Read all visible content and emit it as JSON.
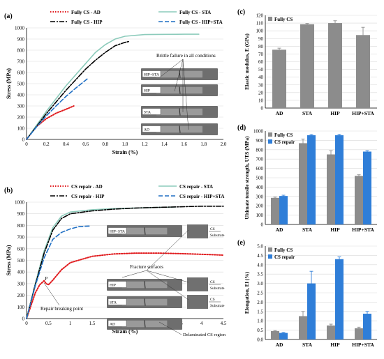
{
  "colors": {
    "ad": "#e0191c",
    "sta": "#8ccbbb",
    "hip": "#000000",
    "hipsta": "#1f6fc4",
    "bar_fully": "#8c8c8c",
    "bar_repair": "#2f7ed8",
    "grid": "#d9d9d9"
  },
  "chart_data": [
    {
      "panel": "(a)",
      "type": "line",
      "xlabel": "Strain (%)",
      "ylabel": "Stress (MPa)",
      "xlim": [
        0,
        2.0
      ],
      "ylim": [
        0,
        1000
      ],
      "xticks": [
        "0",
        "0.2",
        "0.4",
        "0.6",
        "0.8",
        "1.0",
        "1.2",
        "1.4",
        "1.6",
        "1.8",
        "2.0"
      ],
      "yticks": [
        "0",
        "100",
        "200",
        "300",
        "400",
        "500",
        "600",
        "700",
        "800",
        "900",
        "1000"
      ],
      "grid": true,
      "legend": "top",
      "annotation": "Brittle failure in all conditions",
      "specimen_labels": [
        "HIP+STA",
        "HIP",
        "STA",
        "AD"
      ],
      "series": [
        {
          "name": "Fully CS - AD",
          "color_key": "ad",
          "style": "dotted",
          "x": [
            0,
            0.05,
            0.1,
            0.2,
            0.3,
            0.4,
            0.48
          ],
          "y": [
            0,
            60,
            115,
            185,
            235,
            270,
            300
          ]
        },
        {
          "name": "Fully CS - STA",
          "color_key": "sta",
          "style": "solid",
          "x": [
            0,
            0.2,
            0.4,
            0.6,
            0.7,
            0.8,
            0.9,
            1.0,
            1.2,
            1.4,
            1.6,
            1.75
          ],
          "y": [
            0,
            250,
            480,
            680,
            780,
            850,
            900,
            925,
            940,
            942,
            943,
            943
          ]
        },
        {
          "name": "Fully CS - HIP",
          "color_key": "hip",
          "style": "dashdot",
          "x": [
            0,
            0.2,
            0.4,
            0.6,
            0.7,
            0.8,
            0.9,
            1.0,
            1.05
          ],
          "y": [
            0,
            230,
            440,
            630,
            710,
            780,
            840,
            870,
            880
          ]
        },
        {
          "name": "Fully CS - HIP+STA",
          "color_key": "hipsta",
          "style": "dashed",
          "x": [
            0,
            0.1,
            0.2,
            0.3,
            0.4,
            0.5,
            0.62
          ],
          "y": [
            0,
            110,
            210,
            300,
            385,
            460,
            545
          ]
        }
      ]
    },
    {
      "panel": "(b)",
      "type": "line",
      "xlabel": "Strain (%)",
      "ylabel": "Stress (MPa)",
      "xlim": [
        0,
        4.5
      ],
      "ylim": [
        0,
        1000
      ],
      "xticks": [
        "0",
        "0.5",
        "1",
        "1.5",
        "2",
        "2.5",
        "3",
        "3.5",
        "4",
        "4.5"
      ],
      "yticks": [
        "0",
        "100",
        "200",
        "300",
        "400",
        "500",
        "600",
        "700",
        "800",
        "900",
        "1000"
      ],
      "grid": true,
      "legend": "top",
      "annotations": [
        "Repair breaking point",
        "Fracture surfaces",
        "Delaminated CS region"
      ],
      "point_label": "P",
      "specimen_labels": [
        "HIP+STA",
        "HIP",
        "STA",
        "AD"
      ],
      "side_labels": [
        "CS",
        "Substrate",
        "CS",
        "Substrate",
        "CS",
        "Substrate"
      ],
      "series": [
        {
          "name": "CS repair - AD",
          "color_key": "ad",
          "style": "dotted",
          "x": [
            0,
            0.1,
            0.2,
            0.3,
            0.4,
            0.45,
            0.5,
            0.6,
            0.8,
            1.0,
            1.5,
            2.0,
            2.5,
            3.0,
            3.5,
            4.0,
            4.5
          ],
          "y": [
            0,
            110,
            220,
            290,
            325,
            300,
            290,
            330,
            420,
            480,
            535,
            555,
            562,
            562,
            558,
            552,
            545
          ]
        },
        {
          "name": "CS repair - STA",
          "color_key": "sta",
          "style": "solid",
          "x": [
            0,
            0.2,
            0.4,
            0.6,
            0.8,
            1.0,
            1.5,
            2.0,
            2.5,
            3.0,
            3.4
          ],
          "y": [
            0,
            300,
            580,
            780,
            880,
            915,
            935,
            945,
            950,
            955,
            958
          ]
        },
        {
          "name": "CS repair - HIP",
          "color_key": "hip",
          "style": "dashdot",
          "x": [
            0,
            0.2,
            0.4,
            0.6,
            0.8,
            1.0,
            1.5,
            2.0,
            2.5,
            3.0,
            3.5,
            4.0,
            4.5
          ],
          "y": [
            0,
            290,
            560,
            760,
            860,
            900,
            925,
            940,
            950,
            955,
            960,
            965,
            965
          ]
        },
        {
          "name": "CS repair - HIP+STA",
          "color_key": "hipsta",
          "style": "dashed",
          "x": [
            0,
            0.2,
            0.4,
            0.6,
            0.8,
            1.0,
            1.2,
            1.45
          ],
          "y": [
            0,
            280,
            520,
            680,
            740,
            770,
            790,
            795
          ]
        }
      ]
    },
    {
      "panel": "(c)",
      "type": "bar",
      "categories": [
        "AD",
        "STA",
        "HIP",
        "HIP+STA"
      ],
      "ylabel": "Elastic modulus, E (GPa)",
      "ylim": [
        0,
        120
      ],
      "yticks": [
        "0",
        "10",
        "20",
        "30",
        "40",
        "50",
        "60",
        "70",
        "80",
        "90",
        "100",
        "110",
        "120"
      ],
      "grid": true,
      "legend": "top-left",
      "series": [
        {
          "name": "Fully CS",
          "color_key": "bar_fully",
          "values": [
            75.5,
            108.5,
            110,
            94.5
          ],
          "errors": [
            2,
            1,
            3,
            10
          ]
        }
      ]
    },
    {
      "panel": "(d)",
      "type": "bar",
      "categories": [
        "AD",
        "STA",
        "HIP",
        "HIP+STA"
      ],
      "ylabel": "Ultimate tensile strength, UTS (MPa)",
      "ylim": [
        0,
        1000
      ],
      "yticks": [
        "0",
        "100",
        "200",
        "300",
        "400",
        "500",
        "600",
        "700",
        "800",
        "900",
        "1000"
      ],
      "grid": true,
      "legend": "top-left",
      "series": [
        {
          "name": "Fully CS",
          "color_key": "bar_fully",
          "values": [
            285,
            870,
            750,
            520
          ],
          "errors": [
            8,
            45,
            40,
            12
          ]
        },
        {
          "name": "CS repair",
          "color_key": "bar_repair",
          "values": [
            305,
            955,
            955,
            780
          ],
          "errors": [
            8,
            8,
            10,
            10
          ]
        }
      ]
    },
    {
      "panel": "(e)",
      "type": "bar",
      "categories": [
        "AD",
        "STA",
        "HIP",
        "HIP+STA"
      ],
      "ylabel": "Elongation, El (%)",
      "ylim": [
        0,
        5.0
      ],
      "yticks": [
        "0.0",
        "0.5",
        "1.0",
        "1.5",
        "2.0",
        "2.5",
        "3.0",
        "3.5",
        "4.0",
        "4.5",
        "5.0"
      ],
      "grid": true,
      "legend": "top-left",
      "series": [
        {
          "name": "Fully CS",
          "color_key": "bar_fully",
          "values": [
            0.45,
            1.25,
            0.75,
            0.6
          ],
          "errors": [
            0.03,
            0.25,
            0.07,
            0.06
          ]
        },
        {
          "name": "CS repair",
          "color_key": "bar_repair",
          "values": [
            0.35,
            3.0,
            4.3,
            1.38
          ],
          "errors": [
            0.03,
            0.65,
            0.12,
            0.12
          ]
        }
      ]
    }
  ]
}
